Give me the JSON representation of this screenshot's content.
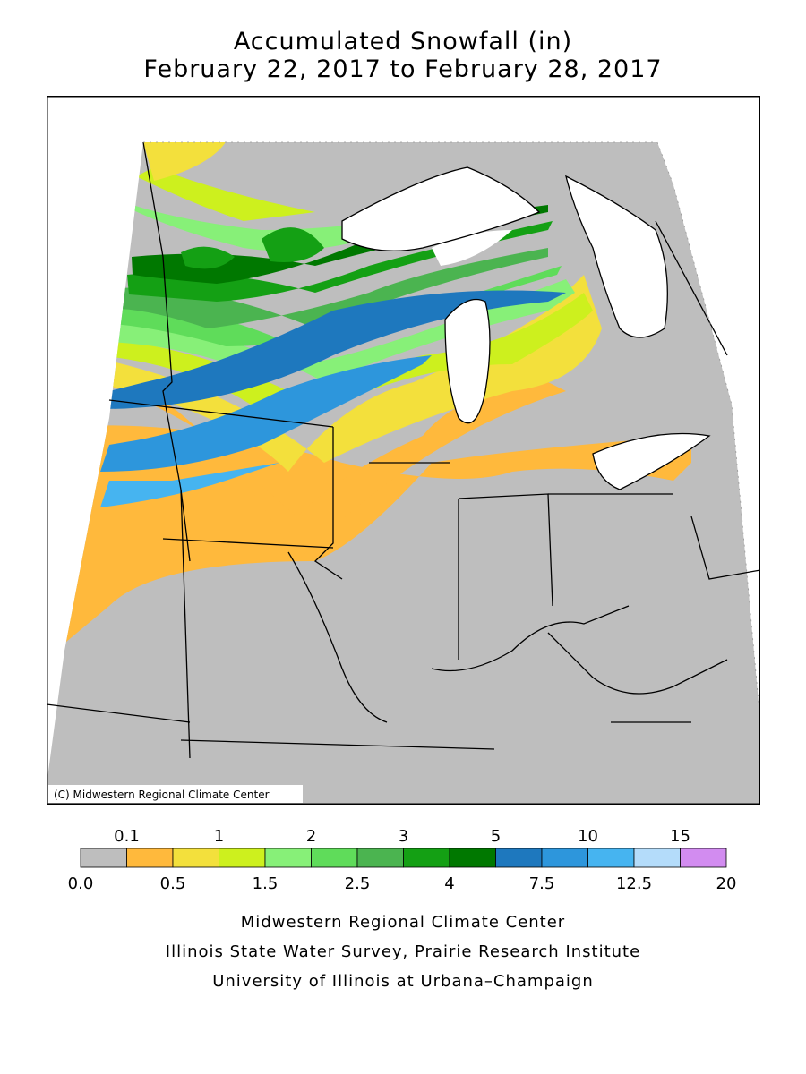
{
  "title": {
    "line1": "Accumulated Snowfall (in)",
    "line2": "February 22, 2017 to February 28, 2017"
  },
  "map": {
    "copyright": "(C) Midwestern Regional Climate Center",
    "frame_color": "#000000",
    "background_color": "#ffffff"
  },
  "legend": {
    "top_labels": [
      "0.1",
      "1",
      "2",
      "3",
      "5",
      "10",
      "15"
    ],
    "bottom_labels": [
      "0.0",
      "0.5",
      "1.5",
      "2.5",
      "4",
      "7.5",
      "12.5",
      "20"
    ],
    "colors": [
      "#bebebe",
      "#ffb93c",
      "#f3e03c",
      "#cdf01e",
      "#87f078",
      "#5fdc5a",
      "#4bb450",
      "#14a014",
      "#007800",
      "#1e78be",
      "#2d96dc",
      "#46b4f0",
      "#b4dcfa",
      "#d28cf0"
    ]
  },
  "credits": {
    "line1": "Midwestern Regional Climate Center",
    "line2": "Illinois State Water Survey, Prairie Research Institute",
    "line3": "University of Illinois at Urbana–Champaign"
  }
}
